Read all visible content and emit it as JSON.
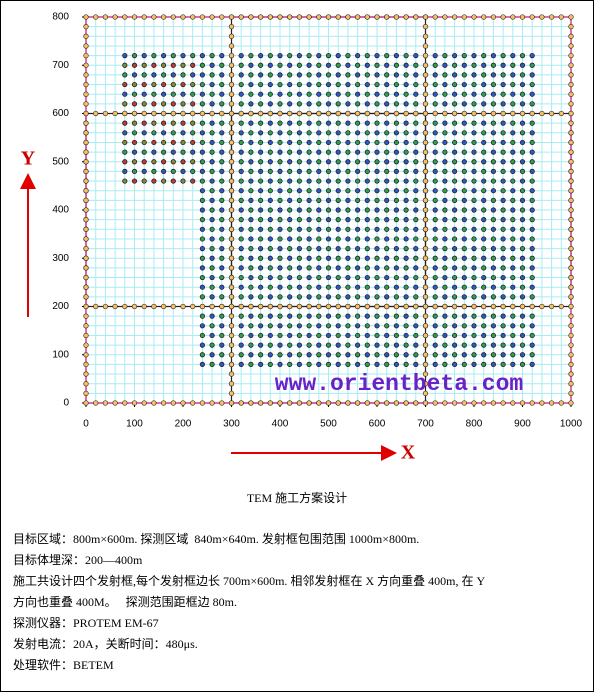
{
  "axes": {
    "xlim": [
      0,
      1000
    ],
    "ylim": [
      0,
      800
    ],
    "xticks": [
      0,
      100,
      200,
      300,
      400,
      500,
      600,
      700,
      800,
      900,
      1000
    ],
    "yticks": [
      0,
      100,
      200,
      300,
      400,
      500,
      600,
      700,
      800
    ],
    "grid_step": 20,
    "grid_color": "#a8ecf4"
  },
  "axis_labels": {
    "x": "X",
    "y": "Y"
  },
  "watermark": "www.orientbeta.com",
  "loops": [
    {
      "x": [
        0,
        700
      ],
      "y": [
        0,
        600
      ]
    },
    {
      "x": [
        300,
        1000
      ],
      "y": [
        0,
        600
      ]
    },
    {
      "x": [
        0,
        700
      ],
      "y": [
        200,
        800
      ]
    },
    {
      "x": [
        300,
        1000
      ],
      "y": [
        200,
        800
      ]
    }
  ],
  "loop_station_spacing": 20,
  "survey_points": {
    "spacing": 20,
    "colors": [
      "#3355cc",
      "#cc3333",
      "#2e9e55",
      "#8a8a2a"
    ],
    "regions": [
      {
        "x": [
          80,
          220
        ],
        "y": [
          460,
          720
        ]
      },
      {
        "x": [
          240,
          920
        ],
        "y": [
          80,
          720
        ]
      }
    ]
  },
  "caption": "TEM 施工方案设计",
  "notes": [
    "目标区域：800m×600m. 探测区域  840m×640m. 发射框包围范围 1000m×800m.",
    "目标体埋深：200—400m",
    "施工共设计四个发射框,每个发射框边长 700m×600m. 相邻发射框在 X 方向重叠 400m, 在 Y",
    "方向也重叠 400M。   探测范围距框边 80m.",
    "探测仪器：PROTEM EM-67",
    "发射电流：20A，关断时间：480μs.",
    "处理软件：BETEM"
  ]
}
